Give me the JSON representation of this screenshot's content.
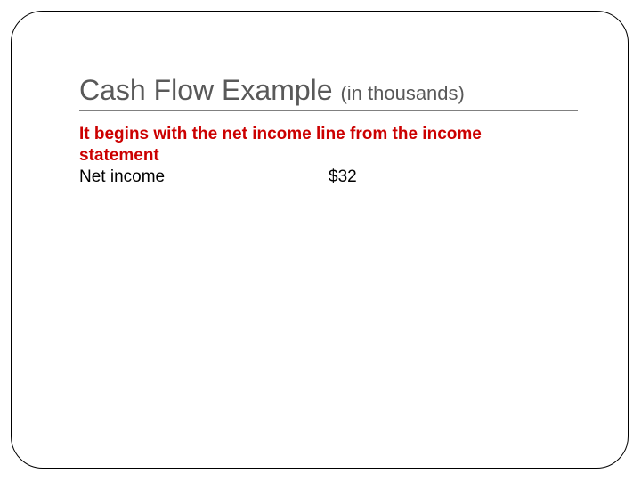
{
  "title": {
    "main": "Cash Flow Example",
    "sub": "(in thousands)",
    "main_color": "#595959",
    "main_fontsize": 32,
    "sub_fontsize": 22,
    "underline_color": "#808080"
  },
  "intro": {
    "text": "It begins with the net income line from the income statement",
    "color": "#cc0000",
    "fontsize": 19,
    "bold": true
  },
  "line_item": {
    "label": "Net income",
    "value": "$32",
    "label_color": "#000000",
    "value_color": "#000000",
    "fontsize": 19
  },
  "frame": {
    "border_color": "#000000",
    "border_radius": 36,
    "background": "#ffffff"
  }
}
